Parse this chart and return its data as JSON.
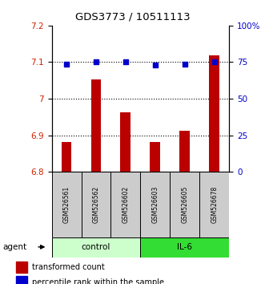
{
  "title": "GDS3773 / 10511113",
  "samples": [
    "GSM526561",
    "GSM526562",
    "GSM526602",
    "GSM526603",
    "GSM526605",
    "GSM526678"
  ],
  "bar_values": [
    6.882,
    7.052,
    6.962,
    6.882,
    6.912,
    7.118
  ],
  "percentile_values": [
    73.5,
    75,
    75,
    73,
    73.5,
    75
  ],
  "ylim_left": [
    6.8,
    7.2
  ],
  "ylim_right": [
    0,
    100
  ],
  "yticks_left": [
    6.8,
    6.9,
    7.0,
    7.1,
    7.2
  ],
  "ytick_labels_left": [
    "6.8",
    "6.9",
    "7",
    "7.1",
    "7.2"
  ],
  "yticks_right": [
    0,
    25,
    50,
    75,
    100
  ],
  "ytick_labels_right": [
    "0",
    "25",
    "50",
    "75",
    "100%"
  ],
  "bar_color": "#bb0000",
  "dot_color": "#0000cc",
  "bar_base": 6.8,
  "dotted_lines": [
    6.9,
    7.0,
    7.1
  ],
  "groups": [
    {
      "label": "control",
      "indices": [
        0,
        1,
        2
      ],
      "color": "#ccffcc"
    },
    {
      "label": "IL-6",
      "indices": [
        3,
        4,
        5
      ],
      "color": "#33dd33"
    }
  ],
  "agent_label": "agent",
  "legend_bar_label": "transformed count",
  "legend_dot_label": "percentile rank within the sample",
  "sample_box_color": "#cccccc",
  "left_axis_color": "#cc2200",
  "right_axis_color": "#0000cc"
}
